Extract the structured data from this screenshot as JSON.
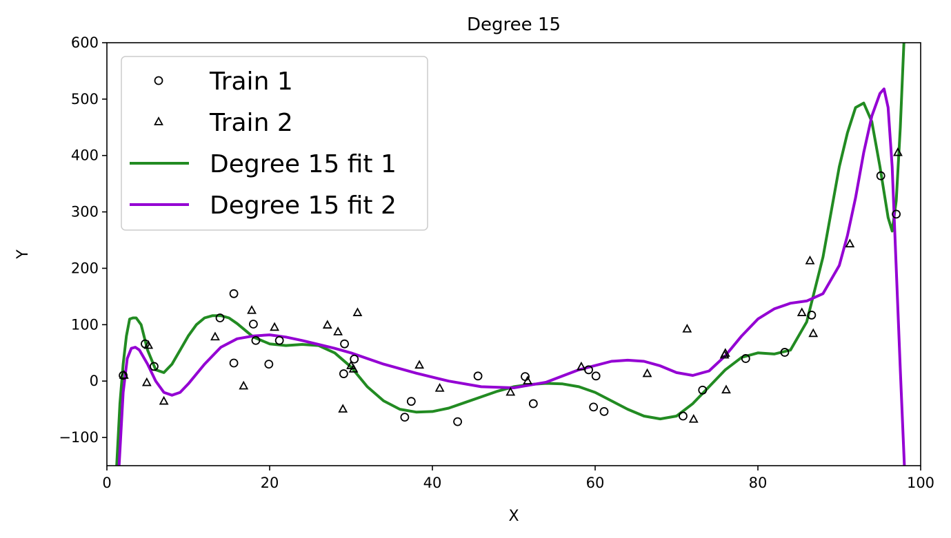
{
  "chart_data": {
    "type": "scatter",
    "title": "Degree 15",
    "xlabel": "X",
    "ylabel": "Y",
    "xlim": [
      0,
      100
    ],
    "ylim": [
      -150,
      600
    ],
    "xticks": [
      0,
      20,
      40,
      60,
      80,
      100
    ],
    "yticks": [
      -100,
      0,
      100,
      200,
      300,
      400,
      500,
      600
    ],
    "grid": false,
    "legend_placement": "upper-left",
    "series": [
      {
        "name": "Train 1",
        "kind": "scatter",
        "marker": "circle",
        "x": [
          2,
          4.7,
          5.8,
          13.9,
          15.6,
          15.6,
          18,
          18.3,
          19.9,
          21.2,
          29.1,
          29.2,
          30.4,
          36.6,
          37.4,
          43.1,
          45.6,
          51.4,
          52.4,
          59.2,
          59.8,
          60.1,
          61.1,
          70.8,
          73.2,
          78.5,
          83.3,
          86.6,
          95.1,
          97.0
        ],
        "y": [
          10,
          66,
          26,
          112,
          155,
          32,
          101,
          72,
          30,
          72,
          13,
          66,
          39,
          -64,
          -36,
          -72,
          9,
          8,
          -40,
          20,
          -46,
          9,
          -54,
          -62,
          -16,
          40,
          51,
          117,
          364,
          296
        ]
      },
      {
        "name": "Train 2",
        "kind": "scatter",
        "marker": "triangle",
        "x": [
          2.1,
          4.9,
          5.1,
          7,
          13.3,
          16.8,
          17.8,
          20.6,
          27.1,
          28.4,
          29.0,
          30.0,
          30.3,
          30.8,
          38.4,
          40.9,
          49.6,
          51.7,
          58.3,
          66.4,
          71.3,
          72.1,
          75.9,
          76.0,
          76.1,
          85.4,
          86.4,
          86.8,
          91.3,
          97.2
        ],
        "y": [
          10,
          -3,
          63,
          -36,
          78,
          -9,
          125,
          95,
          99,
          87,
          -50,
          27,
          21,
          121,
          28,
          -13,
          -20,
          0,
          25,
          13,
          92,
          -68,
          46,
          49,
          -16,
          121,
          213,
          84,
          243,
          405
        ]
      },
      {
        "name": "Degree 15 fit 1",
        "kind": "line",
        "color": "#228b22",
        "x": [
          1.2,
          1.6,
          2,
          2.4,
          2.8,
          3.2,
          3.6,
          4.2,
          5,
          6,
          7,
          8,
          9,
          10,
          11,
          12,
          13,
          14,
          15,
          16,
          18,
          20,
          22,
          24,
          26,
          28,
          30,
          32,
          34,
          36,
          38,
          40,
          42,
          44,
          46,
          48,
          50,
          52,
          54,
          56,
          58,
          60,
          62,
          64,
          66,
          68,
          70,
          72,
          74,
          76,
          78,
          80,
          82,
          84,
          86,
          88,
          89,
          90,
          91,
          92,
          93,
          94,
          95,
          96,
          96.5,
          97,
          97.5,
          98
        ],
        "y": [
          -150,
          -40,
          30,
          80,
          110,
          112,
          112,
          100,
          55,
          20,
          15,
          30,
          55,
          80,
          100,
          112,
          116,
          116,
          112,
          102,
          78,
          66,
          63,
          65,
          63,
          50,
          25,
          -10,
          -35,
          -50,
          -55,
          -54,
          -48,
          -38,
          -28,
          -18,
          -10,
          -6,
          -4,
          -5,
          -10,
          -20,
          -35,
          -50,
          -62,
          -67,
          -62,
          -40,
          -10,
          20,
          42,
          50,
          48,
          55,
          105,
          220,
          300,
          380,
          440,
          485,
          493,
          460,
          380,
          290,
          266,
          320,
          450,
          620
        ]
      },
      {
        "name": "Degree 15 fit 2",
        "kind": "line",
        "color": "#9400d3",
        "x": [
          1.5,
          2,
          2.5,
          3,
          3.5,
          4,
          5,
          6,
          7,
          8,
          9,
          10,
          12,
          14,
          16,
          18,
          20,
          22,
          24,
          26,
          28,
          30,
          34,
          38,
          42,
          46,
          50,
          54,
          58,
          62,
          64,
          66,
          68,
          70,
          72,
          74,
          76,
          78,
          80,
          82,
          84,
          86,
          88,
          90,
          91,
          92,
          93,
          94,
          95,
          95.5,
          96,
          96.5,
          97,
          97.5,
          98
        ],
        "y": [
          -150,
          -20,
          40,
          58,
          60,
          55,
          30,
          0,
          -20,
          -25,
          -20,
          -5,
          30,
          60,
          75,
          80,
          82,
          78,
          72,
          65,
          58,
          50,
          30,
          14,
          0,
          -10,
          -12,
          -2,
          20,
          35,
          37,
          35,
          27,
          15,
          10,
          18,
          45,
          80,
          110,
          128,
          138,
          142,
          155,
          205,
          258,
          325,
          405,
          470,
          510,
          518,
          485,
          380,
          200,
          20,
          -150
        ]
      }
    ]
  }
}
